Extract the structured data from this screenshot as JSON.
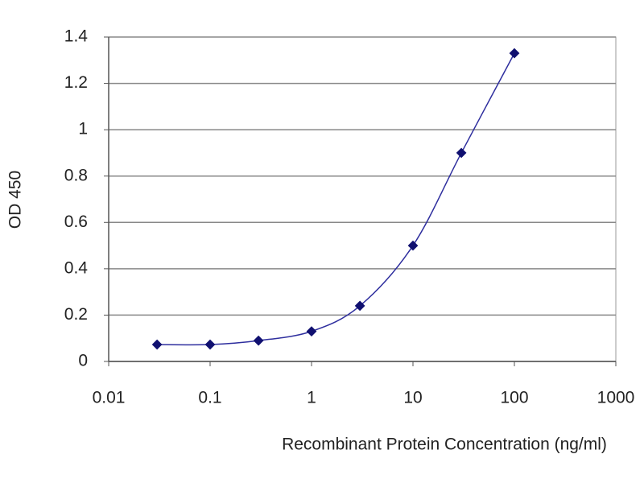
{
  "chart_data": {
    "type": "line",
    "x_label": "Recombinant Protein Concentration (ng/ml)",
    "y_label": "OD 450",
    "xscale": "log",
    "grid": true,
    "series": [
      {
        "color": "#2e2e9e",
        "x": [
          0.03,
          0.1,
          0.3,
          1,
          3,
          10,
          30,
          100
        ],
        "values": [
          0.073,
          0.073,
          0.09,
          0.13,
          0.24,
          0.5,
          0.9,
          1.33
        ]
      }
    ],
    "xlim": [
      0.01,
      1000
    ],
    "xticks": [
      0.01,
      0.1,
      1,
      10,
      100,
      1000
    ],
    "ylim": [
      0,
      1.4
    ],
    "yticks": [
      0,
      0.2,
      0.4,
      0.6,
      0.8,
      1,
      1.2,
      1.4
    ]
  }
}
